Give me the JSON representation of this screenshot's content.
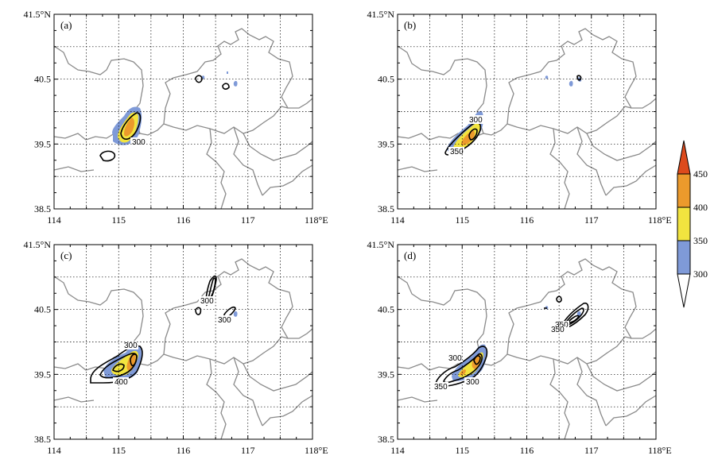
{
  "colors": {
    "fill_300_350": "#7f9ad8",
    "fill_350_400": "#f2e43f",
    "fill_400_450": "#ec9a2c",
    "fill_450_plus": "#dd4a1c",
    "contour": "#000000",
    "border": "#8a8a8a",
    "grid": "#000000"
  },
  "chart_data": [
    {
      "type": "contour-map",
      "panel": "(a)",
      "x_ticks": [
        "114",
        "115",
        "116",
        "117",
        "118°E"
      ],
      "y_ticks": [
        "41.5°N",
        "40.5",
        "39.5",
        "38.5"
      ],
      "xlim": [
        114,
        118
      ],
      "ylim": [
        38.5,
        41.5
      ],
      "grid": "dotted",
      "contour_labels": [
        "300"
      ]
    },
    {
      "type": "contour-map",
      "panel": "(b)",
      "x_ticks": [
        "114",
        "115",
        "116",
        "117",
        "118°E"
      ],
      "y_ticks": [
        "41.5°N",
        "40.5",
        "39.5",
        "38.5"
      ],
      "xlim": [
        114,
        118
      ],
      "ylim": [
        38.5,
        41.5
      ],
      "grid": "dotted",
      "contour_labels": [
        "300",
        "350"
      ]
    },
    {
      "type": "contour-map",
      "panel": "(c)",
      "x_ticks": [
        "114",
        "115",
        "116",
        "117",
        "118°E"
      ],
      "y_ticks": [
        "41.5°N",
        "40.5",
        "39.5",
        "38.5"
      ],
      "xlim": [
        114,
        118
      ],
      "ylim": [
        38.5,
        41.5
      ],
      "grid": "dotted",
      "contour_labels": [
        "300",
        "400",
        "300",
        "300"
      ]
    },
    {
      "type": "contour-map",
      "panel": "(d)",
      "x_ticks": [
        "114",
        "115",
        "116",
        "117",
        "118°E"
      ],
      "y_ticks": [
        "41.5°N",
        "40.5",
        "39.5",
        "38.5"
      ],
      "xlim": [
        114,
        118
      ],
      "ylim": [
        38.5,
        41.5
      ],
      "grid": "dotted",
      "contour_labels": [
        "300",
        "350",
        "300",
        "350",
        "350"
      ]
    }
  ],
  "colorbar": {
    "levels": [
      "300",
      "350",
      "400",
      "450"
    ]
  }
}
